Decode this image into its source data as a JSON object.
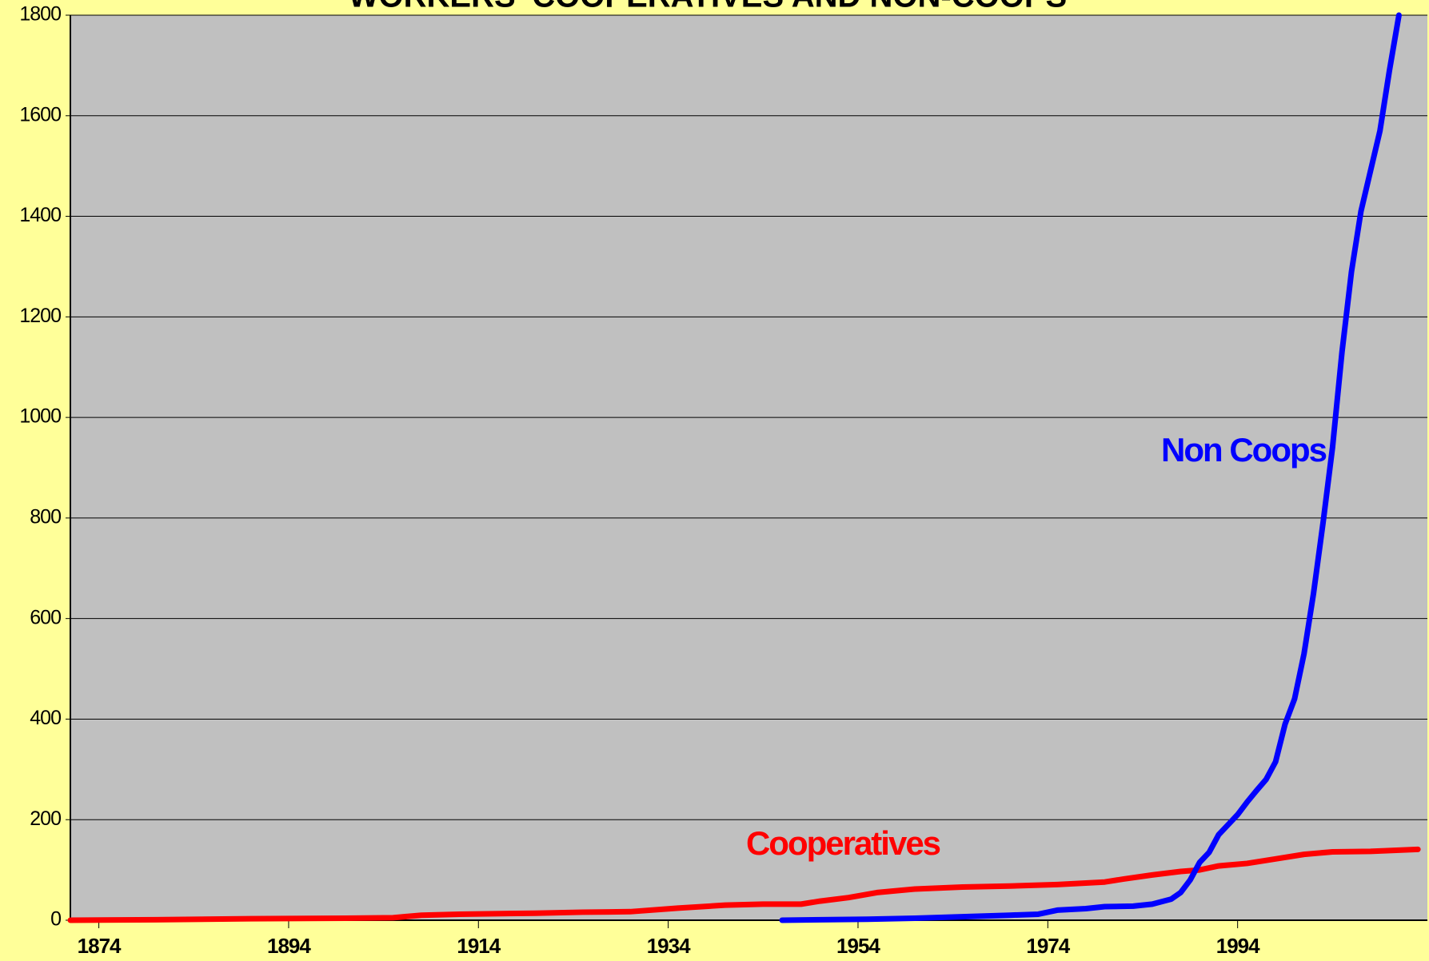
{
  "chart_data": {
    "type": "line",
    "title": "WORKERS' COOPERATIVES AND NON-COOPS",
    "series": [
      {
        "name": "Cooperatives",
        "color": "#ff0000",
        "x": [
          1871,
          1880,
          1890,
          1900,
          1905,
          1908,
          1912,
          1920,
          1925,
          1930,
          1935,
          1940,
          1944,
          1948,
          1950,
          1953,
          1956,
          1960,
          1965,
          1970,
          1975,
          1980,
          1982,
          1985,
          1988,
          1990,
          1992,
          1995,
          1998,
          2001,
          2004,
          2008,
          2013
        ],
        "values": [
          0,
          1,
          3,
          4,
          5,
          10,
          12,
          14,
          16,
          17,
          24,
          30,
          32,
          32,
          38,
          45,
          55,
          62,
          66,
          68,
          71,
          76,
          82,
          90,
          97,
          100,
          108,
          113,
          122,
          131,
          136,
          137,
          141
        ]
      },
      {
        "name": "Non Coops",
        "color": "#0000ff",
        "x": [
          1946,
          1955,
          1960,
          1965,
          1970,
          1973,
          1975,
          1978,
          1980,
          1983,
          1985,
          1987,
          1988,
          1989,
          1990,
          1991,
          1992,
          1993,
          1994,
          1995,
          1996,
          1997,
          1998,
          1999,
          2000,
          2001,
          2002,
          2003,
          2004,
          2005,
          2006,
          2007,
          2008,
          2009,
          2010,
          2011
        ],
        "values": [
          0,
          2,
          4,
          7,
          10,
          12,
          20,
          23,
          27,
          28,
          32,
          42,
          55,
          80,
          115,
          135,
          170,
          190,
          210,
          235,
          258,
          280,
          315,
          390,
          440,
          530,
          650,
          790,
          940,
          1130,
          1290,
          1410,
          1490,
          1570,
          1690,
          1800
        ]
      }
    ],
    "xlim": [
      1871,
      2014
    ],
    "xticks": [
      1874,
      1894,
      1914,
      1934,
      1954,
      1974,
      1994
    ],
    "ylim": [
      0,
      1800
    ],
    "yticks": [
      0,
      200,
      400,
      600,
      800,
      1000,
      1200,
      1400,
      1600,
      1800
    ],
    "grid": true,
    "background": "#ffff99",
    "plot_background": "#c0c0c0"
  }
}
